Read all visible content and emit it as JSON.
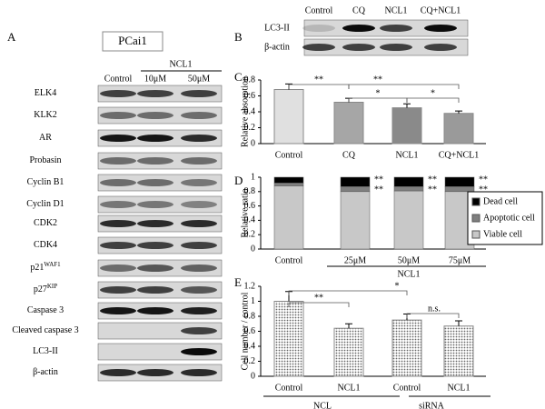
{
  "panel_letters": [
    "A",
    "B",
    "C",
    "D",
    "E"
  ],
  "panel_a": {
    "cell_line": "PCai1",
    "group": "NCL1",
    "columns": [
      "Control",
      "10μM",
      "50μM"
    ],
    "rows": [
      {
        "label": "ELK4"
      },
      {
        "label": "KLK2"
      },
      {
        "label": "AR"
      },
      {
        "label": "Probasin"
      },
      {
        "label": "Cyclin B1"
      },
      {
        "label": "Cyclin D1"
      },
      {
        "label": "CDK2"
      },
      {
        "label": "CDK4"
      },
      {
        "label": "p21",
        "sup": "WAF1"
      },
      {
        "label": "p27",
        "sup": "KIP"
      },
      {
        "label": "Caspase 3"
      },
      {
        "label": "Cleaved caspase 3"
      },
      {
        "label": "LC3-II"
      },
      {
        "label": "β-actin"
      }
    ]
  },
  "panel_b": {
    "columns": [
      "Control",
      "CQ",
      "NCL1",
      "CQ+NCL1"
    ],
    "rows": [
      "LC3-II",
      "β-actin"
    ]
  },
  "chart_data": [
    {
      "type": "bar",
      "ylabel": "Relative absorption",
      "categories": [
        "Control",
        "CQ",
        "NCL1",
        "CQ+NCL1"
      ],
      "values": [
        0.68,
        0.52,
        0.45,
        0.38
      ],
      "errors": [
        0.07,
        0.05,
        0.05,
        0.03
      ],
      "colors": [
        "#e0e0e0",
        "#a6a6a6",
        "#8a8a8a",
        "#9a9a9a"
      ],
      "ylim": [
        0,
        0.8
      ],
      "yticks": [
        0,
        0.2,
        0.4,
        0.6,
        0.8
      ],
      "annotations": [
        "**",
        "**",
        "*",
        "*"
      ]
    },
    {
      "type": "stacked_bar",
      "ylabel": "Relative ratio",
      "categories": [
        "Control",
        "25μM",
        "50μM",
        "75μM"
      ],
      "group_label": "NCL1",
      "series": [
        {
          "name": "Viable cell",
          "color": "#c8c8c8",
          "values": [
            0.88,
            0.8,
            0.81,
            0.8
          ]
        },
        {
          "name": "Apoptotic cell",
          "color": "#7f7f7f",
          "values": [
            0.04,
            0.07,
            0.06,
            0.07
          ]
        },
        {
          "name": "Dead cell",
          "color": "#000000",
          "values": [
            0.08,
            0.13,
            0.13,
            0.13
          ]
        }
      ],
      "ylim": [
        0,
        1
      ],
      "yticks": [
        0,
        0.2,
        0.4,
        0.6,
        0.8,
        1
      ],
      "legend": "right",
      "annotations": [
        "**",
        "**",
        "**",
        "**",
        "**",
        "**"
      ]
    },
    {
      "type": "bar",
      "ylabel": "Cell number / control",
      "categories": [
        "Control",
        "NCL1",
        "Control",
        "NCL1"
      ],
      "groups": [
        "NCL",
        "siRNA"
      ],
      "values": [
        1.0,
        0.64,
        0.75,
        0.67
      ],
      "errors": [
        0.13,
        0.06,
        0.08,
        0.07
      ],
      "color": "#d4d4d4",
      "ylim": [
        0,
        1.2
      ],
      "yticks": [
        0,
        0.2,
        0.4,
        0.6,
        0.8,
        1,
        1.2
      ],
      "annotations": [
        "**",
        "*",
        "n.s."
      ]
    }
  ]
}
